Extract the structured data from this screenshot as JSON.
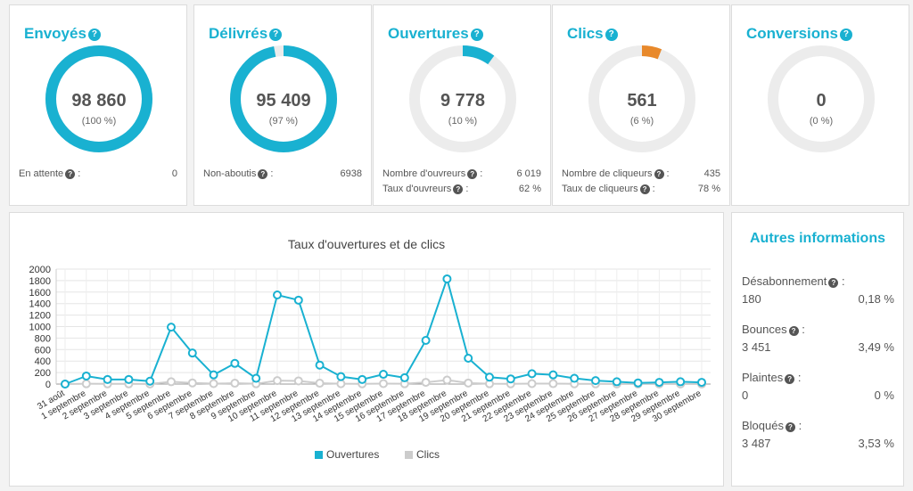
{
  "cards": [
    {
      "title": "Envoyés",
      "value": "98 860",
      "percent": "(100 %)",
      "fraction": 1.0,
      "color": "#19b1d1",
      "stats": [
        {
          "label": "En attente",
          "value": "0"
        }
      ]
    },
    {
      "title": "Délivrés",
      "value": "95 409",
      "percent": "(97 %)",
      "fraction": 0.97,
      "color": "#19b1d1",
      "stats": [
        {
          "label": "Non-aboutis",
          "value": "6938"
        }
      ]
    },
    {
      "title": "Ouvertures",
      "value": "9 778",
      "percent": "(10 %)",
      "fraction": 0.1,
      "color": "#19b1d1",
      "stats": [
        {
          "label": "Nombre d'ouvreurs",
          "value": "6 019"
        },
        {
          "label": "Taux d'ouvreurs",
          "value": "62 %"
        }
      ]
    },
    {
      "title": "Clics",
      "value": "561",
      "percent": "(6 %)",
      "fraction": 0.06,
      "color": "#e8892b",
      "stats": [
        {
          "label": "Nombre de cliqueurs",
          "value": "435"
        },
        {
          "label": "Taux de cliqueurs",
          "value": "78 %"
        }
      ]
    },
    {
      "title": "Conversions",
      "value": "0",
      "percent": "(0 %)",
      "fraction": 0,
      "color": "#19b1d1",
      "stats": []
    }
  ],
  "ring_track_color": "#ececec",
  "help_icon_glyph": "?",
  "stat_separator": ":",
  "side": {
    "title": "Autres informations",
    "items": [
      {
        "label": "Désabonnement",
        "count": "180",
        "percent": "0,18 %"
      },
      {
        "label": "Bounces",
        "count": "3 451",
        "percent": "3,49 %"
      },
      {
        "label": "Plaintes",
        "count": "0",
        "percent": "0 %"
      },
      {
        "label": "Bloqués",
        "count": "3 487",
        "percent": "3,53 %"
      }
    ]
  },
  "chart_data": {
    "type": "line",
    "title": "Taux d'ouvertures et de clics",
    "categories": [
      "31 août",
      "1 septembre",
      "2 septembre",
      "3 septembre",
      "4 septembre",
      "5 septembre",
      "6 septembre",
      "7 septembre",
      "8 septembre",
      "9 septembre",
      "10 septembre",
      "11 septembre",
      "12 septembre",
      "13 septembre",
      "14 septembre",
      "15 septembre",
      "16 septembre",
      "17 septembre",
      "18 septembre",
      "19 septembre",
      "20 septembre",
      "21 septembre",
      "22 septembre",
      "23 septembre",
      "24 septembre",
      "25 septembre",
      "26 septembre",
      "27 septembre",
      "28 septembre",
      "29 septembre",
      "30 septembre"
    ],
    "series": [
      {
        "name": "Ouvertures",
        "color": "#19b1d1",
        "values": [
          0,
          140,
          80,
          80,
          50,
          990,
          540,
          160,
          360,
          100,
          1550,
          1460,
          330,
          130,
          80,
          170,
          110,
          760,
          1830,
          450,
          120,
          90,
          180,
          160,
          100,
          60,
          40,
          20,
          30,
          40,
          30
        ]
      },
      {
        "name": "Clics",
        "color": "#cccccc",
        "values": [
          0,
          5,
          3,
          3,
          2,
          40,
          20,
          8,
          15,
          5,
          60,
          55,
          15,
          6,
          4,
          8,
          5,
          30,
          70,
          18,
          5,
          4,
          8,
          7,
          4,
          3,
          2,
          1,
          2,
          2,
          1
        ]
      }
    ],
    "ylim": [
      0,
      2000
    ],
    "yticks": [
      0,
      200,
      400,
      600,
      800,
      1000,
      1200,
      1400,
      1600,
      1800,
      2000
    ],
    "grid": true,
    "legend": "bottom"
  }
}
